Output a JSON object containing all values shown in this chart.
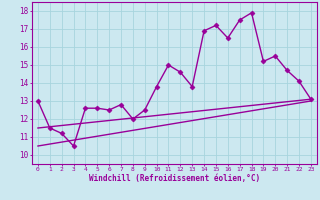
{
  "title": "",
  "xlabel": "Windchill (Refroidissement éolien,°C)",
  "ylabel": "",
  "bg_color": "#cce8f0",
  "grid_color": "#a8d4de",
  "line_color": "#990099",
  "xlim": [
    -0.5,
    23.5
  ],
  "ylim": [
    9.5,
    18.5
  ],
  "yticks": [
    10,
    11,
    12,
    13,
    14,
    15,
    16,
    17,
    18
  ],
  "xticks": [
    0,
    1,
    2,
    3,
    4,
    5,
    6,
    7,
    8,
    9,
    10,
    11,
    12,
    13,
    14,
    15,
    16,
    17,
    18,
    19,
    20,
    21,
    22,
    23
  ],
  "series1": [
    13.0,
    11.5,
    11.2,
    10.5,
    12.6,
    12.6,
    12.5,
    12.8,
    12.0,
    12.5,
    13.8,
    15.0,
    14.6,
    13.8,
    16.9,
    17.2,
    16.5,
    17.5,
    17.9,
    15.2,
    15.5,
    14.7,
    14.1,
    13.1
  ],
  "series2_y": [
    11.5,
    13.1
  ],
  "series3_y": [
    10.5,
    13.0
  ],
  "marker": "D",
  "marker_size": 2.5,
  "line_width": 1.0
}
